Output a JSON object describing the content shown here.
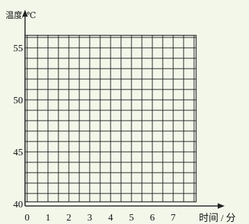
{
  "chart_data": {
    "type": "line",
    "title": "",
    "ylabel": "温度/ ℃",
    "xlabel": "时间 / 分",
    "x_ticks": [
      "0",
      "1",
      "2",
      "3",
      "4",
      "5",
      "6",
      "7"
    ],
    "y_ticks": [
      "40",
      "45",
      "50",
      "55"
    ],
    "xlim": [
      0,
      8
    ],
    "ylim": [
      40,
      56
    ],
    "x_minor_step": 0.5,
    "y_minor_step": 1,
    "grid": true,
    "series": []
  },
  "colors": {
    "background": "#f2f7ea",
    "grid": "#222222",
    "axis": "#222222",
    "text": "#111111"
  }
}
